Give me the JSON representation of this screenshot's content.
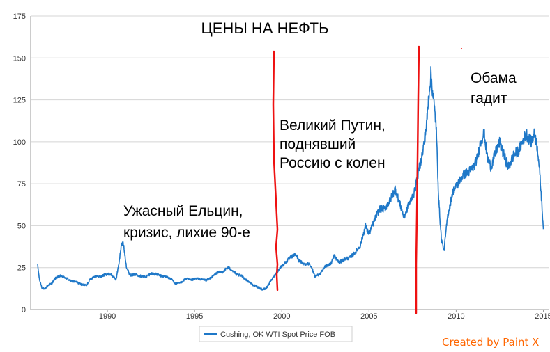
{
  "chart_data": {
    "type": "line",
    "title": "ЦЕНЫ НА НЕФТЬ",
    "xlabel": "",
    "ylabel": "",
    "xlim": [
      1985.6,
      2015.3
    ],
    "ylim": [
      0,
      175
    ],
    "x_ticks": [
      "1990",
      "1995",
      "2000",
      "2005",
      "2010",
      "2015"
    ],
    "x_tick_values": [
      1990,
      1995,
      2000,
      2005,
      2010,
      2015
    ],
    "y_ticks": [
      "0",
      "25",
      "50",
      "75",
      "100",
      "125",
      "150",
      "175"
    ],
    "y_tick_values": [
      0,
      25,
      50,
      75,
      100,
      125,
      150,
      175
    ],
    "grid": "horizontal",
    "legend_position": "bottom",
    "series": [
      {
        "name": "Cushing, OK WTI Spot Price FOB",
        "color": "#1f78c8",
        "x": [
          1986.0,
          1986.1,
          1986.25,
          1986.4,
          1986.6,
          1986.8,
          1987.0,
          1987.3,
          1987.6,
          1987.9,
          1988.2,
          1988.5,
          1988.8,
          1989.0,
          1989.3,
          1989.6,
          1989.9,
          1990.2,
          1990.5,
          1990.65,
          1990.8,
          1990.9,
          1991.0,
          1991.1,
          1991.3,
          1991.6,
          1991.9,
          1992.2,
          1992.5,
          1992.8,
          1993.1,
          1993.4,
          1993.7,
          1993.9,
          1994.2,
          1994.5,
          1994.8,
          1995.1,
          1995.4,
          1995.7,
          1996.0,
          1996.3,
          1996.6,
          1996.9,
          1997.1,
          1997.4,
          1997.7,
          1998.0,
          1998.3,
          1998.6,
          1998.9,
          1999.1,
          1999.3,
          1999.6,
          1999.9,
          2000.2,
          2000.5,
          2000.8,
          2001.0,
          2001.3,
          2001.6,
          2001.9,
          2002.2,
          2002.5,
          2002.8,
          2003.0,
          2003.3,
          2003.6,
          2003.9,
          2004.2,
          2004.5,
          2004.8,
          2005.0,
          2005.3,
          2005.6,
          2005.9,
          2006.2,
          2006.5,
          2006.8,
          2007.0,
          2007.3,
          2007.6,
          2007.9,
          2008.1,
          2008.3,
          2008.45,
          2008.55,
          2008.7,
          2008.85,
          2009.0,
          2009.15,
          2009.3,
          2009.5,
          2009.8,
          2010.1,
          2010.4,
          2010.7,
          2011.0,
          2011.2,
          2011.4,
          2011.6,
          2011.8,
          2012.0,
          2012.3,
          2012.5,
          2012.8,
          2013.0,
          2013.3,
          2013.6,
          2013.8,
          2014.0,
          2014.3,
          2014.5,
          2014.6,
          2014.7,
          2014.8,
          2014.9,
          2015.0
        ],
        "values": [
          26.5,
          18.0,
          13.0,
          12.0,
          14.5,
          15.5,
          18.5,
          20.0,
          19.0,
          17.0,
          16.5,
          15.0,
          14.5,
          18.0,
          20.0,
          19.5,
          21.0,
          21.0,
          18.0,
          27.0,
          38.0,
          40.0,
          33.0,
          25.0,
          20.5,
          21.0,
          20.0,
          19.5,
          21.5,
          21.0,
          20.0,
          19.5,
          18.0,
          15.5,
          16.0,
          18.5,
          17.5,
          18.5,
          18.0,
          17.5,
          19.5,
          22.0,
          22.5,
          25.0,
          24.0,
          21.0,
          20.0,
          17.5,
          15.0,
          13.5,
          12.0,
          12.5,
          16.0,
          20.5,
          25.0,
          28.0,
          31.0,
          33.0,
          29.0,
          27.0,
          27.5,
          20.0,
          21.0,
          26.0,
          27.0,
          32.0,
          28.0,
          30.0,
          31.0,
          34.0,
          38.0,
          50.0,
          45.0,
          53.0,
          60.0,
          60.0,
          65.0,
          72.0,
          62.0,
          55.0,
          63.0,
          70.0,
          85.0,
          95.0,
          110.0,
          130.0,
          140.0,
          125.0,
          110.0,
          65.0,
          42.0,
          35.0,
          55.0,
          70.0,
          75.0,
          80.0,
          82.0,
          85.0,
          90.0,
          100.0,
          105.0,
          90.0,
          85.0,
          95.0,
          100.0,
          90.0,
          85.0,
          92.0,
          95.0,
          100.0,
          105.0,
          100.0,
          105.0,
          100.0,
          93.0,
          80.0,
          65.0,
          48.0
        ]
      }
    ]
  },
  "annotations": {
    "yeltsin_line1": "Ужасный Ельцин,",
    "yeltsin_line2": "кризис, лихие 90-е",
    "putin_line1": "Великий Путин,",
    "putin_line2": "поднявший",
    "putin_line3": "Россию с колен",
    "obama_line1": "Обама",
    "obama_line2": "гадит"
  },
  "watermark": {
    "text": "Created by Paint X",
    "color": "#ff6600"
  },
  "markers": {
    "color": "#ee1111",
    "years": [
      2000,
      2008
    ]
  }
}
